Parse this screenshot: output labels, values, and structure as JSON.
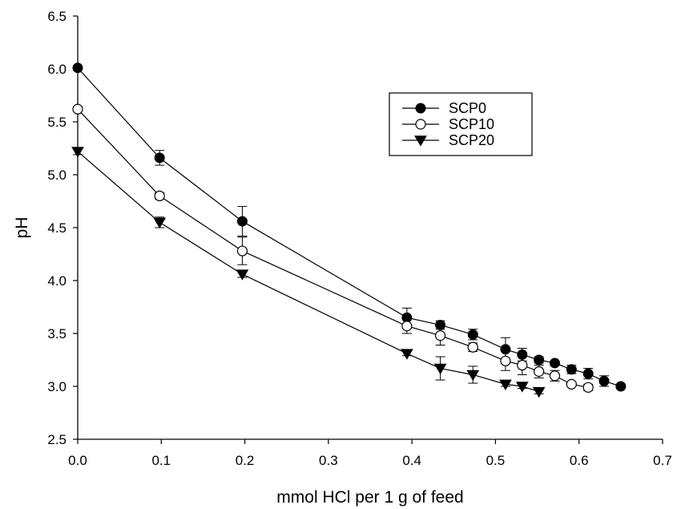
{
  "chart_data": {
    "type": "line",
    "title": "",
    "xlabel": "mmol HCl per 1 g of feed",
    "ylabel": "pH",
    "xlim": [
      0.0,
      0.7
    ],
    "ylim": [
      2.5,
      6.5
    ],
    "x_ticks": [
      "0.0",
      "0.1",
      "0.2",
      "0.3",
      "0.4",
      "0.5",
      "0.6",
      "0.7"
    ],
    "y_ticks": [
      "2.5",
      "3.0",
      "3.5",
      "4.0",
      "4.5",
      "5.0",
      "5.5",
      "6.0",
      "6.5"
    ],
    "grid": false,
    "legend_position": "top-right",
    "series": [
      {
        "name": "SCP0",
        "marker": "filled-circle",
        "x": [
          0.0,
          0.098,
          0.197,
          0.394,
          0.434,
          0.473,
          0.512,
          0.532,
          0.552,
          0.571,
          0.591,
          0.611,
          0.63,
          0.65
        ],
        "y": [
          6.01,
          5.16,
          4.56,
          3.65,
          3.58,
          3.49,
          3.35,
          3.3,
          3.25,
          3.22,
          3.16,
          3.12,
          3.05,
          3.0
        ],
        "err": [
          0.02,
          0.07,
          0.14,
          0.09,
          0.04,
          0.05,
          0.11,
          0.06,
          0.03,
          0.02,
          0.04,
          0.05,
          0.05,
          0.02
        ]
      },
      {
        "name": "SCP10",
        "marker": "open-circle",
        "x": [
          0.0,
          0.098,
          0.197,
          0.394,
          0.434,
          0.473,
          0.512,
          0.532,
          0.552,
          0.571,
          0.591,
          0.611
        ],
        "y": [
          5.62,
          4.8,
          4.28,
          3.57,
          3.48,
          3.37,
          3.24,
          3.2,
          3.14,
          3.1,
          3.02,
          2.99
        ],
        "err": [
          0.02,
          0.03,
          0.13,
          0.07,
          0.09,
          0.04,
          0.09,
          0.09,
          0.06,
          0.05,
          0.02,
          0.03
        ]
      },
      {
        "name": "SCP20",
        "marker": "filled-triangle-down",
        "x": [
          0.0,
          0.098,
          0.197,
          0.394,
          0.434,
          0.473,
          0.512,
          0.532,
          0.552
        ],
        "y": [
          5.22,
          4.55,
          4.06,
          3.31,
          3.17,
          3.11,
          3.02,
          3.0,
          2.95
        ],
        "err": [
          0.03,
          0.05,
          0.03,
          0.02,
          0.11,
          0.08,
          0.02,
          0.02,
          0.02
        ]
      }
    ]
  }
}
